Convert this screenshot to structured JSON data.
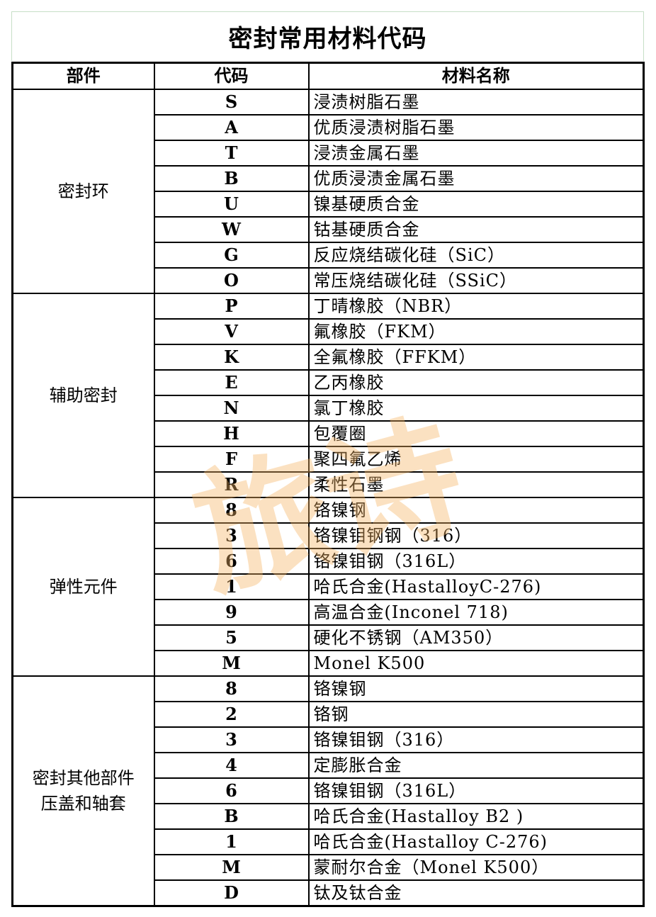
{
  "title": "密封常用材料代码",
  "headers": {
    "part": "部件",
    "code": "代码",
    "material": "材料名称"
  },
  "watermark": "旅诗",
  "groups": [
    {
      "part": "密封环",
      "rows": [
        {
          "code": "S",
          "material": "浸渍树脂石墨"
        },
        {
          "code": "A",
          "material": "优质浸渍树脂石墨"
        },
        {
          "code": "T",
          "material": "浸渍金属石墨"
        },
        {
          "code": "B",
          "material": "优质浸渍金属石墨"
        },
        {
          "code": "U",
          "material": "镍基硬质合金"
        },
        {
          "code": "W",
          "material": "钴基硬质合金"
        },
        {
          "code": "G",
          "material": "反应烧结碳化硅（SiC）"
        },
        {
          "code": "O",
          "material": "常压烧结碳化硅（SSiC）"
        }
      ]
    },
    {
      "part": "辅助密封",
      "rows": [
        {
          "code": "P",
          "material": "丁晴橡胶（NBR）"
        },
        {
          "code": "V",
          "material": "氟橡胶（FKM）"
        },
        {
          "code": "K",
          "material": "全氟橡胶（FFKM）"
        },
        {
          "code": "E",
          "material": "乙丙橡胶"
        },
        {
          "code": "N",
          "material": "氯丁橡胶"
        },
        {
          "code": "H",
          "material": "包覆圈"
        },
        {
          "code": "F",
          "material": "聚四氟乙烯"
        },
        {
          "code": "R",
          "material": "柔性石墨"
        }
      ]
    },
    {
      "part": "弹性元件",
      "rows": [
        {
          "code": "8",
          "material": "铬镍钢"
        },
        {
          "code": "3",
          "material": "铬镍钼钢钢（316）"
        },
        {
          "code": "6",
          "material": "铬镍钼钢（316L）"
        },
        {
          "code": "1",
          "material": "哈氏合金(HastalloyC-276)"
        },
        {
          "code": "9",
          "material": "高温合金(Inconel 718)"
        },
        {
          "code": "5",
          "material": "硬化不锈钢（AM350）"
        },
        {
          "code": "M",
          "material": "Monel K500"
        }
      ]
    },
    {
      "part": "密封其他部件\n压盖和轴套",
      "rows": [
        {
          "code": "8",
          "material": "铬镍钢"
        },
        {
          "code": "2",
          "material": "铬钢"
        },
        {
          "code": "3",
          "material": "铬镍钼钢（316）"
        },
        {
          "code": "4",
          "material": "定膨胀合金"
        },
        {
          "code": "6",
          "material": "铬镍钼钢（316L）"
        },
        {
          "code": "B",
          "material": "哈氏合金(Hastalloy B2 )"
        },
        {
          "code": "1",
          "material": "哈氏合金(Hastalloy C-276)"
        },
        {
          "code": "M",
          "material": "蒙耐尔合金（Monel K500）"
        },
        {
          "code": "D",
          "material": "钛及钛合金"
        }
      ]
    }
  ]
}
